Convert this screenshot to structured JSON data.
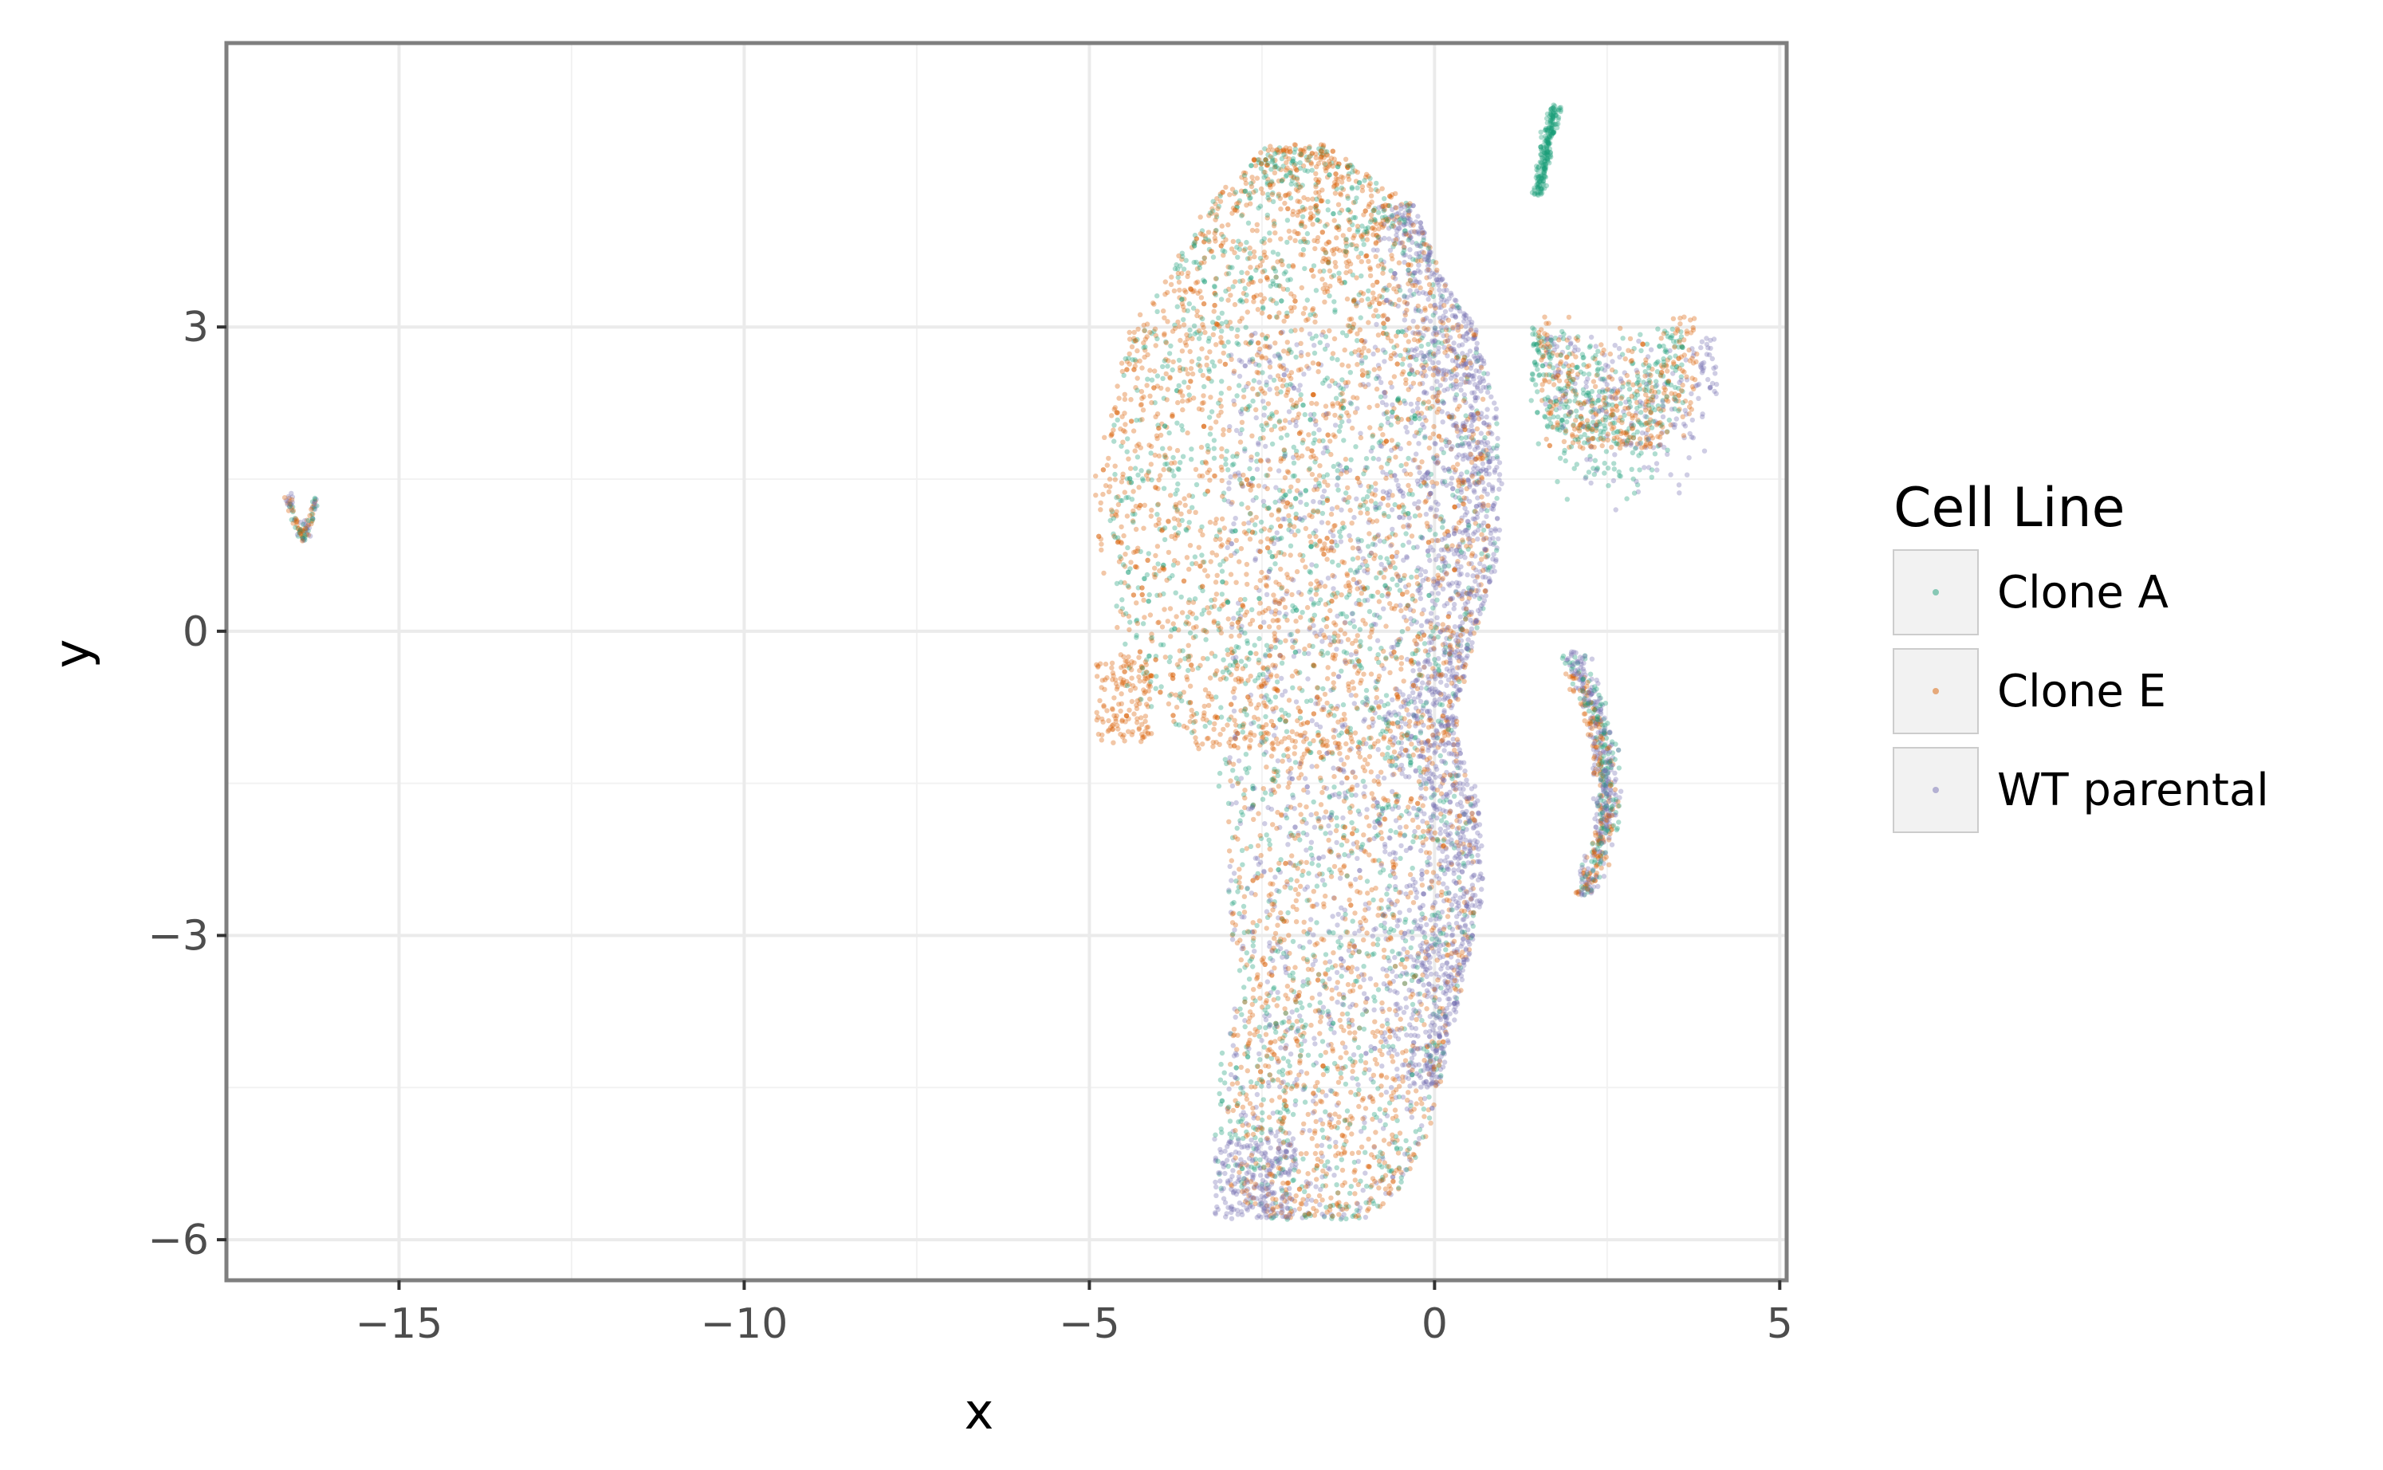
{
  "chart_data": {
    "type": "scatter",
    "title": "",
    "xlabel": "x",
    "ylabel": "y",
    "xlim": [
      -17.5,
      5.1
    ],
    "ylim": [
      -6.4,
      5.8
    ],
    "x_ticks": [
      -15,
      -10,
      -5,
      0,
      5
    ],
    "x_tick_labels": [
      "−15",
      "−10",
      "−5",
      "0",
      "5"
    ],
    "y_ticks": [
      -6,
      -3,
      0,
      3
    ],
    "y_tick_labels": [
      "−6",
      "−3",
      "0",
      "3"
    ],
    "grid": true,
    "legend": {
      "title": "Cell Line",
      "position": "right",
      "entries": [
        "Clone A",
        "Clone E",
        "WT parental"
      ]
    },
    "colors": {
      "Clone A": "#1b9e77",
      "Clone E": "#d95f02",
      "WT parental": "#7570b3"
    },
    "series": [
      {
        "name": "Clone A",
        "point_count_estimate": 3200,
        "clusters": [
          {
            "region": "main-upper-body",
            "x_range": [
              -4.7,
              1.1
            ],
            "y_range": [
              -1.0,
              4.8
            ],
            "weight": 0.4
          },
          {
            "region": "main-lower-body",
            "x_range": [
              -3.2,
              0.8
            ],
            "y_range": [
              -5.9,
              -1.0
            ],
            "weight": 0.22
          },
          {
            "region": "top-right-strand",
            "x_range": [
              1.4,
              1.9
            ],
            "y_range": [
              4.3,
              5.2
            ],
            "weight": 0.07
          },
          {
            "region": "right-wing",
            "x_range": [
              1.4,
              3.6
            ],
            "y_range": [
              1.3,
              3.0
            ],
            "weight": 0.12
          },
          {
            "region": "right-arc",
            "x_range": [
              1.8,
              2.7
            ],
            "y_range": [
              -2.6,
              -0.2
            ],
            "weight": 0.05
          },
          {
            "region": "far-left-cluster",
            "x_range": [
              -16.6,
              -16.2
            ],
            "y_range": [
              0.8,
              1.3
            ],
            "weight": 0.01
          }
        ]
      },
      {
        "name": "Clone E",
        "point_count_estimate": 4300,
        "clusters": [
          {
            "region": "main-upper-body",
            "x_range": [
              -5.0,
              0.8
            ],
            "y_range": [
              -1.2,
              4.8
            ],
            "weight": 0.55
          },
          {
            "region": "main-lower-body",
            "x_range": [
              -3.0,
              0.6
            ],
            "y_range": [
              -5.9,
              -1.0
            ],
            "weight": 0.25
          },
          {
            "region": "left-protrusion",
            "x_range": [
              -4.9,
              -4.1
            ],
            "y_range": [
              -1.1,
              -0.3
            ],
            "weight": 0.03
          },
          {
            "region": "right-wing",
            "x_range": [
              1.5,
              3.8
            ],
            "y_range": [
              1.8,
              3.1
            ],
            "weight": 0.08
          },
          {
            "region": "right-arc",
            "x_range": [
              1.8,
              2.7
            ],
            "y_range": [
              -2.6,
              -0.4
            ],
            "weight": 0.04
          },
          {
            "region": "far-left-cluster",
            "x_range": [
              -16.6,
              -16.2
            ],
            "y_range": [
              0.8,
              1.35
            ],
            "weight": 0.01
          }
        ]
      },
      {
        "name": "WT parental",
        "point_count_estimate": 3500,
        "clusters": [
          {
            "region": "main-right-edge",
            "x_range": [
              -1.0,
              1.0
            ],
            "y_range": [
              -4.5,
              4.2
            ],
            "weight": 0.45
          },
          {
            "region": "main-body",
            "x_range": [
              -3.0,
              0.8
            ],
            "y_range": [
              -5.9,
              3.0
            ],
            "weight": 0.3
          },
          {
            "region": "bottom-left-lobe",
            "x_range": [
              -3.2,
              -2.0
            ],
            "y_range": [
              -5.8,
              -5.0
            ],
            "weight": 0.06
          },
          {
            "region": "right-wing",
            "x_range": [
              1.6,
              4.1
            ],
            "y_range": [
              0.9,
              2.9
            ],
            "weight": 0.06
          },
          {
            "region": "right-arc",
            "x_range": [
              1.8,
              2.7
            ],
            "y_range": [
              -2.6,
              -0.2
            ],
            "weight": 0.08
          },
          {
            "region": "far-left-cluster",
            "x_range": [
              -16.5,
              -16.2
            ],
            "y_range": [
              0.8,
              1.1
            ],
            "weight": 0.01
          }
        ]
      }
    ]
  }
}
